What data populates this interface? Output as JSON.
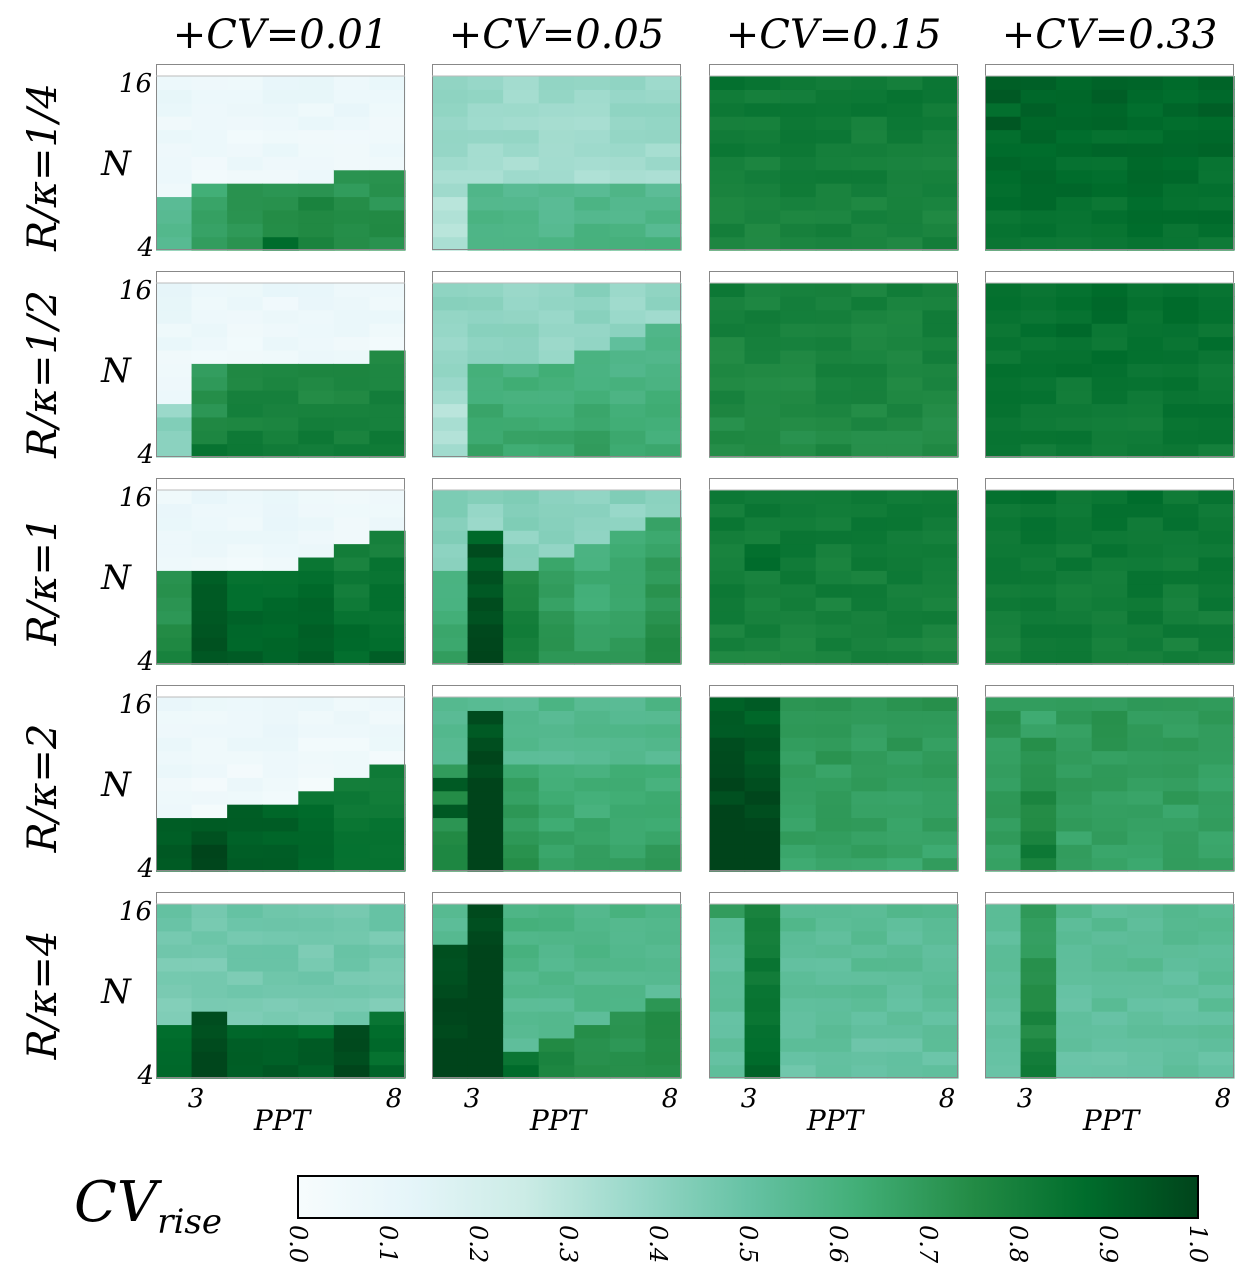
{
  "chart_data": {
    "type": "heatmap",
    "columns": [
      "+CV=0.01",
      "+CV=0.05",
      "+CV=0.15",
      "+CV=0.33"
    ],
    "rows": [
      "R/κ=1/4",
      "R/κ=1/2",
      "R/κ=1",
      "R/κ=2",
      "R/κ=4"
    ],
    "ylabel": "N",
    "xlabel": "PPT",
    "y_ticks": [
      "16",
      "4"
    ],
    "y_range": [
      4,
      16
    ],
    "x_ticks": [
      "3",
      "8"
    ],
    "x_range": [
      2,
      9
    ],
    "colorbar": {
      "label_main": "CV",
      "label_sub": "rise",
      "ticks": [
        "0.0",
        "0.1",
        "0.2",
        "0.3",
        "0.4",
        "0.5",
        "0.6",
        "0.7",
        "0.8",
        "0.9",
        "1.0"
      ],
      "range": [
        0,
        1
      ],
      "colors": [
        "#f7fcfd",
        "#e5f5f9",
        "#ccece6",
        "#99d8c9",
        "#66c2a4",
        "#41ae76",
        "#238b45",
        "#006d2c",
        "#00441b"
      ]
    },
    "panels": [
      [
        {
          "bg": 0.06,
          "steps": [
            4,
            5,
            5,
            5,
            5,
            6,
            6
          ],
          "band": [
            0.55,
            0.65,
            0.7,
            0.7,
            0.75,
            0.7,
            0.7
          ],
          "hot": [
            [
              3,
              0,
              0.9
            ]
          ]
        },
        {
          "bg": 0.35,
          "steps": [
            4,
            5,
            5,
            5,
            5,
            5,
            5
          ],
          "band": [
            0.3,
            0.55,
            0.55,
            0.55,
            0.55,
            0.55,
            0.55
          ],
          "hot": []
        },
        {
          "bg": 0.78,
          "steps": [
            0,
            0,
            0,
            0,
            0,
            0,
            0
          ],
          "band": [
            0.78,
            0.78,
            0.78,
            0.78,
            0.78,
            0.78,
            0.78
          ],
          "hot": [
            [
              0,
              12,
              0.85
            ]
          ]
        },
        {
          "bg": 0.85,
          "steps": [
            0,
            0,
            0,
            0,
            0,
            0,
            0
          ],
          "band": [
            0.85,
            0.85,
            0.85,
            0.85,
            0.85,
            0.85,
            0.85
          ],
          "hot": [
            [
              0,
              9,
              0.95
            ],
            [
              0,
              11,
              0.95
            ]
          ]
        }
      ],
      [
        {
          "bg": 0.06,
          "steps": [
            4,
            7,
            7,
            7,
            7,
            7,
            8
          ],
          "band": [
            0.4,
            0.7,
            0.75,
            0.75,
            0.75,
            0.75,
            0.75
          ],
          "hot": [
            [
              1,
              0,
              0.85
            ]
          ]
        },
        {
          "bg": 0.38,
          "steps": [
            4,
            7,
            7,
            7,
            8,
            9,
            10
          ],
          "band": [
            0.3,
            0.6,
            0.6,
            0.6,
            0.6,
            0.55,
            0.55
          ],
          "hot": []
        },
        {
          "bg": 0.75,
          "steps": [
            0,
            0,
            0,
            0,
            0,
            0,
            0
          ],
          "band": [
            0.75,
            0.75,
            0.75,
            0.75,
            0.75,
            0.75,
            0.75
          ],
          "hot": []
        },
        {
          "bg": 0.82,
          "steps": [
            0,
            0,
            0,
            0,
            0,
            0,
            0
          ],
          "band": [
            0.82,
            0.82,
            0.82,
            0.82,
            0.82,
            0.82,
            0.82
          ],
          "hot": []
        }
      ],
      [
        {
          "bg": 0.06,
          "steps": [
            7,
            7,
            7,
            7,
            8,
            9,
            10
          ],
          "band": [
            0.7,
            0.9,
            0.85,
            0.85,
            0.85,
            0.8,
            0.8
          ],
          "hot": [
            [
              1,
              1,
              0.95
            ],
            [
              1,
              3,
              0.95
            ]
          ]
        },
        {
          "bg": 0.4,
          "steps": [
            7,
            10,
            7,
            8,
            9,
            10,
            11
          ],
          "band": [
            0.6,
            0.9,
            0.75,
            0.65,
            0.6,
            0.6,
            0.65
          ],
          "hot": [
            [
              1,
              6,
              0.95
            ],
            [
              1,
              7,
              0.95
            ],
            [
              1,
              8,
              0.95
            ]
          ]
        },
        {
          "bg": 0.78,
          "steps": [
            0,
            0,
            0,
            0,
            0,
            0,
            0
          ],
          "band": [
            0.7,
            0.85,
            0.7,
            0.68,
            0.66,
            0.66,
            0.68
          ],
          "hot": [
            [
              1,
              7,
              0.88
            ],
            [
              1,
              8,
              0.88
            ]
          ]
        },
        {
          "bg": 0.8,
          "steps": [
            0,
            0,
            0,
            0,
            0,
            0,
            0
          ],
          "band": [
            0.72,
            0.72,
            0.7,
            0.68,
            0.66,
            0.66,
            0.66
          ],
          "hot": []
        }
      ],
      [
        {
          "bg": 0.05,
          "steps": [
            4,
            4,
            5,
            5,
            6,
            7,
            8
          ],
          "band": [
            0.9,
            0.95,
            0.9,
            0.9,
            0.85,
            0.8,
            0.8
          ],
          "hot": []
        },
        {
          "bg": 0.55,
          "steps": [
            8,
            12,
            8,
            8,
            8,
            8,
            8
          ],
          "band": [
            0.7,
            0.95,
            0.65,
            0.62,
            0.6,
            0.6,
            0.62
          ],
          "hot": [
            [
              1,
              7,
              0.95
            ],
            [
              0,
              4,
              0.95
            ],
            [
              0,
              6,
              0.95
            ]
          ]
        },
        {
          "bg": 0.66,
          "steps": [
            13,
            13,
            0,
            0,
            0,
            0,
            0
          ],
          "band": [
            0.92,
            0.9,
            0.66,
            0.66,
            0.66,
            0.66,
            0.66
          ],
          "hot": []
        },
        {
          "bg": 0.66,
          "steps": [
            0,
            10,
            0,
            0,
            0,
            0,
            0
          ],
          "band": [
            0.7,
            0.72,
            0.66,
            0.66,
            0.66,
            0.66,
            0.66
          ],
          "hot": []
        }
      ],
      [
        {
          "bg": 0.45,
          "steps": [
            4,
            5,
            4,
            4,
            4,
            4,
            5
          ],
          "band": [
            0.85,
            0.95,
            0.9,
            0.9,
            0.9,
            0.95,
            0.85
          ],
          "hot": []
        },
        {
          "bg": 0.55,
          "steps": [
            10,
            13,
            2,
            3,
            4,
            5,
            6
          ],
          "band": [
            0.95,
            0.98,
            0.85,
            0.75,
            0.72,
            0.7,
            0.72
          ],
          "hot": []
        },
        {
          "bg": 0.5,
          "steps": [
            0,
            13,
            0,
            0,
            0,
            0,
            0
          ],
          "band": [
            0.5,
            0.78,
            0.5,
            0.5,
            0.5,
            0.5,
            0.5
          ],
          "hot": [
            [
              0,
              12,
              0.7
            ]
          ]
        },
        {
          "bg": 0.5,
          "steps": [
            0,
            13,
            0,
            0,
            0,
            0,
            0
          ],
          "band": [
            0.45,
            0.68,
            0.5,
            0.5,
            0.5,
            0.5,
            0.5
          ],
          "hot": []
        }
      ]
    ]
  }
}
